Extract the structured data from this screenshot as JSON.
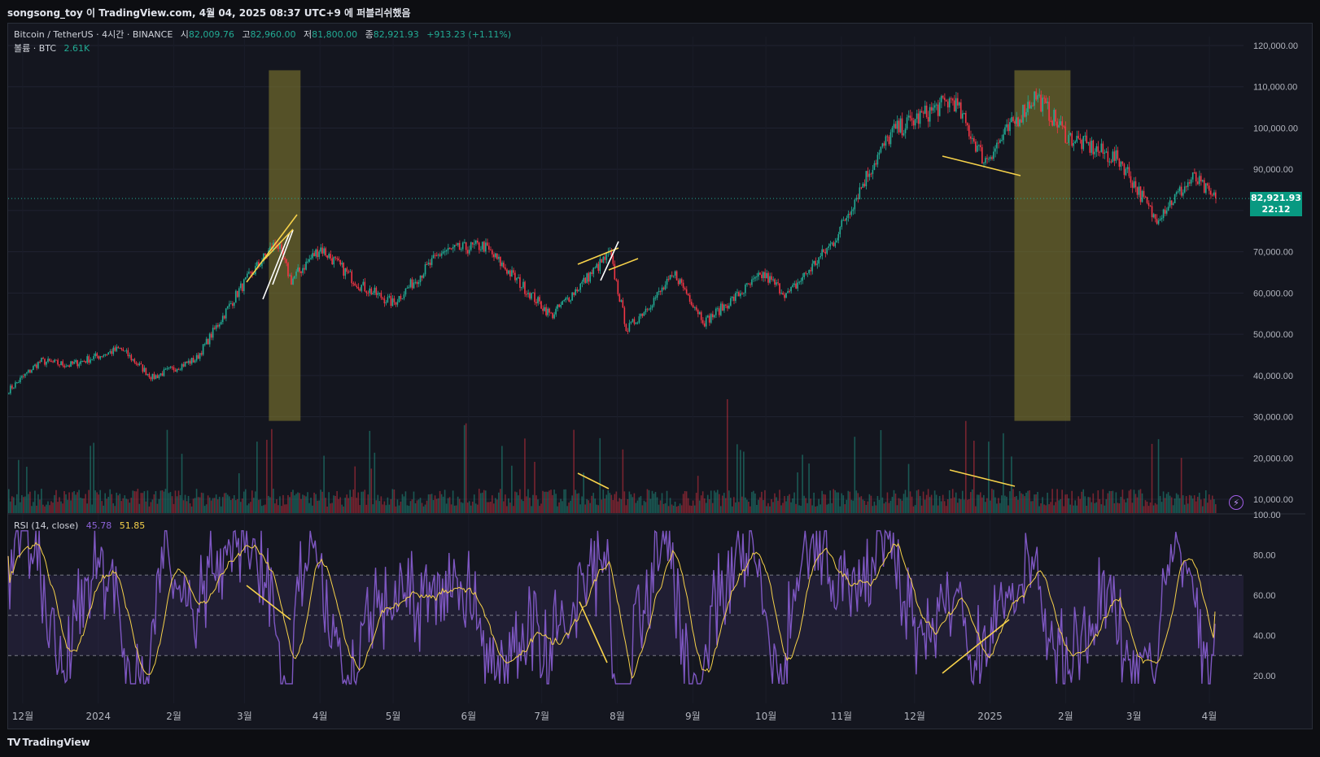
{
  "header": {
    "publish_line": "songsong_toy 이 TradingView.com, 4월 04, 2025 08:37 UTC+9 에 퍼블리쉬했음"
  },
  "legend": {
    "symbol": "Bitcoin / TetherUS · 4시간 · BINANCE",
    "open_label": "시",
    "open": "82,009.76",
    "high_label": "고",
    "high": "82,960.00",
    "low_label": "저",
    "low": "81,800.00",
    "close_label": "종",
    "close": "82,921.93",
    "change": "+913.23 (+1.11%)",
    "volume_label": "볼륨 · BTC",
    "volume": "2.61K",
    "rsi_label": "RSI (14, close)",
    "rsi_value": "45.78",
    "rsi_ma_value": "51.85"
  },
  "price_tag": {
    "price": "82,921.93",
    "countdown": "22:12"
  },
  "footer": {
    "brand": "TradingView"
  },
  "colors": {
    "up": "#22ab94",
    "down": "#f23645",
    "rsi": "#7e57c2",
    "rsi_ma": "#f7d24a",
    "highlight": "#807a2e",
    "bg": "#14161f"
  },
  "icons": {
    "bolt": "lightning-bolt-icon",
    "logo": "tradingview-logo-icon"
  },
  "chart_data": [
    {
      "type": "candlestick",
      "title": "Bitcoin / TetherUS · 4시간 · BINANCE",
      "y_ticks": [
        "10,000.00",
        "20,000.00",
        "30,000.00",
        "40,000.00",
        "50,000.00",
        "60,000.00",
        "70,000.00",
        "80,000.00",
        "90,000.00",
        "100,000.00",
        "110,000.00",
        "120,000.00"
      ],
      "x_ticks": [
        "12월",
        "2024",
        "2월",
        "3월",
        "4월",
        "5월",
        "6월",
        "7월",
        "8월",
        "9월",
        "10월",
        "11월",
        "12월",
        "2025",
        "2월",
        "3월",
        "4월"
      ],
      "ylim": [
        5000,
        123000
      ],
      "last_close": 82921.93,
      "close_path_approx": [
        {
          "x": "2023-11-25",
          "y": 36500
        },
        {
          "x": "2023-12-08",
          "y": 43500
        },
        {
          "x": "2023-12-20",
          "y": 42500
        },
        {
          "x": "2024-01-10",
          "y": 46500
        },
        {
          "x": "2024-01-23",
          "y": 39500
        },
        {
          "x": "2024-02-10",
          "y": 44000
        },
        {
          "x": "2024-02-28",
          "y": 61000
        },
        {
          "x": "2024-03-14",
          "y": 72500
        },
        {
          "x": "2024-03-20",
          "y": 63000
        },
        {
          "x": "2024-04-01",
          "y": 71000
        },
        {
          "x": "2024-04-17",
          "y": 62000
        },
        {
          "x": "2024-05-01",
          "y": 57500
        },
        {
          "x": "2024-05-21",
          "y": 70000
        },
        {
          "x": "2024-06-07",
          "y": 71500
        },
        {
          "x": "2024-07-05",
          "y": 54500
        },
        {
          "x": "2024-07-29",
          "y": 69500
        },
        {
          "x": "2024-08-05",
          "y": 51000
        },
        {
          "x": "2024-08-25",
          "y": 64500
        },
        {
          "x": "2024-09-06",
          "y": 53000
        },
        {
          "x": "2024-09-30",
          "y": 64500
        },
        {
          "x": "2024-10-10",
          "y": 59500
        },
        {
          "x": "2024-10-29",
          "y": 72500
        },
        {
          "x": "2024-11-12",
          "y": 89000
        },
        {
          "x": "2024-11-22",
          "y": 99000
        },
        {
          "x": "2024-12-17",
          "y": 107000
        },
        {
          "x": "2024-12-30",
          "y": 92000
        },
        {
          "x": "2025-01-20",
          "y": 108000
        },
        {
          "x": "2025-02-02",
          "y": 98000
        },
        {
          "x": "2025-02-24",
          "y": 92000
        },
        {
          "x": "2025-03-10",
          "y": 78000
        },
        {
          "x": "2025-03-26",
          "y": 88000
        },
        {
          "x": "2025-04-03",
          "y": 82921.93
        }
      ],
      "highlight_boxes": [
        {
          "from": "2024-03-11",
          "to": "2024-03-24"
        },
        {
          "from": "2025-01-11",
          "to": "2025-02-03"
        }
      ]
    },
    {
      "type": "bar",
      "title": "볼륨 · BTC",
      "last_value": "2.61K"
    },
    {
      "type": "line",
      "title": "RSI (14, close)",
      "y_ticks": [
        "20.00",
        "40.00",
        "60.00",
        "80.00",
        "100.00"
      ],
      "ylim": [
        12,
        100
      ],
      "bands": [
        30,
        50,
        70
      ],
      "series": [
        {
          "name": "RSI",
          "last": 45.78
        },
        {
          "name": "MA",
          "last": 51.85
        }
      ]
    }
  ]
}
